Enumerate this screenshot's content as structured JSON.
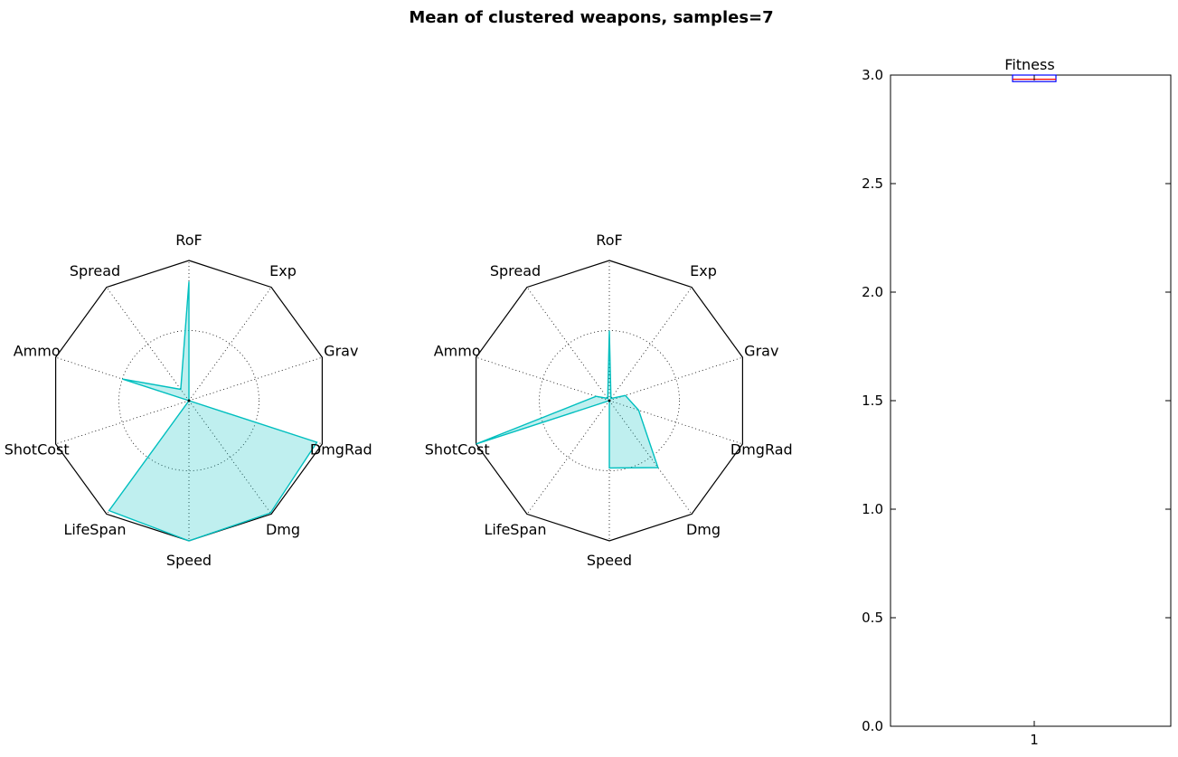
{
  "figure": {
    "suptitle": "Mean of clustered weapons, samples=7"
  },
  "chart_data": [
    {
      "type": "radar",
      "axes": [
        "RoF",
        "Exp",
        "Grav",
        "DmgRad",
        "Dmg",
        "Speed",
        "LifeSpan",
        "ShotCost",
        "Ammo",
        "Spread"
      ],
      "rlim": [
        0,
        1
      ],
      "grid_rings": [
        0.5
      ],
      "series": [
        {
          "values": [
            0.85,
            0.0,
            0.0,
            0.96,
            0.99,
            1.0,
            0.97,
            0.0,
            0.5,
            0.1
          ]
        }
      ],
      "color": "#00bfbf",
      "fill_color": "#00bfbf",
      "fill_alpha": 0.25
    },
    {
      "type": "radar",
      "axes": [
        "RoF",
        "Exp",
        "Grav",
        "DmgRad",
        "Dmg",
        "Speed",
        "LifeSpan",
        "ShotCost",
        "Ammo",
        "Spread"
      ],
      "rlim": [
        0,
        1
      ],
      "grid_rings": [
        0.5
      ],
      "series": [
        {
          "values": [
            0.5,
            0.02,
            0.12,
            0.22,
            0.59,
            0.48,
            0.0,
            1.0,
            0.1,
            0.02
          ]
        }
      ],
      "color": "#00bfbf",
      "fill_color": "#00bfbf",
      "fill_alpha": 0.25
    },
    {
      "type": "box",
      "title": "Fitness",
      "categories": [
        "1"
      ],
      "ylim": [
        0.0,
        3.0
      ],
      "yticks": [
        "0.0",
        "0.5",
        "1.0",
        "1.5",
        "2.0",
        "2.5",
        "3.0"
      ],
      "xticks": [
        "1"
      ],
      "box": {
        "q1": 2.97,
        "median": 2.985,
        "q3": 3.0,
        "whisker_low": 2.97,
        "whisker_high": 3.0
      },
      "box_color": "#0000ff",
      "median_color": "#ff0000"
    }
  ]
}
